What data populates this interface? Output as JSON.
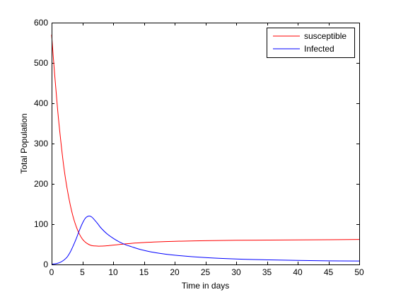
{
  "chart_data": {
    "type": "line",
    "xlabel": "Time in days",
    "ylabel": "Total Population",
    "xlim": [
      0,
      50
    ],
    "ylim": [
      0,
      600
    ],
    "x_ticks": [
      0,
      5,
      10,
      15,
      20,
      25,
      30,
      35,
      40,
      45,
      50
    ],
    "y_ticks": [
      0,
      100,
      200,
      300,
      400,
      500,
      600
    ],
    "grid": false,
    "legend_position": "top-right",
    "series": [
      {
        "name": "susceptible",
        "color": "#ff0000",
        "points": [
          [
            0,
            570
          ],
          [
            0.5,
            470
          ],
          [
            1,
            380
          ],
          [
            1.5,
            305
          ],
          [
            2,
            240
          ],
          [
            2.5,
            190
          ],
          [
            3,
            150
          ],
          [
            3.5,
            118
          ],
          [
            4,
            94
          ],
          [
            4.5,
            76
          ],
          [
            5,
            63
          ],
          [
            5.5,
            55
          ],
          [
            6,
            50
          ],
          [
            6.5,
            47
          ],
          [
            7,
            46
          ],
          [
            7.5,
            45.5
          ],
          [
            8,
            45.5
          ],
          [
            9,
            46.5
          ],
          [
            10,
            48
          ],
          [
            11,
            49.5
          ],
          [
            12,
            51
          ],
          [
            13,
            52.5
          ],
          [
            14,
            53.5
          ],
          [
            15,
            54.5
          ],
          [
            17,
            56
          ],
          [
            20,
            57.5
          ],
          [
            25,
            59
          ],
          [
            30,
            60
          ],
          [
            35,
            60.5
          ],
          [
            40,
            61
          ],
          [
            45,
            61.5
          ],
          [
            50,
            62
          ]
        ]
      },
      {
        "name": "Infected",
        "color": "#0000ff",
        "points": [
          [
            0,
            1
          ],
          [
            0.5,
            1.5
          ],
          [
            1,
            3
          ],
          [
            1.5,
            6
          ],
          [
            2,
            11
          ],
          [
            2.5,
            18
          ],
          [
            3,
            30
          ],
          [
            3.5,
            46
          ],
          [
            4,
            64
          ],
          [
            4.5,
            84
          ],
          [
            5,
            102
          ],
          [
            5.5,
            115
          ],
          [
            6,
            120
          ],
          [
            6.5,
            118
          ],
          [
            7,
            110
          ],
          [
            7.5,
            101
          ],
          [
            8,
            91
          ],
          [
            9,
            76
          ],
          [
            10,
            65
          ],
          [
            11,
            56
          ],
          [
            12,
            49
          ],
          [
            13,
            44
          ],
          [
            14,
            39
          ],
          [
            15,
            35
          ],
          [
            17,
            29
          ],
          [
            20,
            23
          ],
          [
            25,
            17
          ],
          [
            30,
            13.5
          ],
          [
            35,
            11.5
          ],
          [
            40,
            10
          ],
          [
            45,
            9
          ],
          [
            50,
            8.5
          ]
        ]
      }
    ]
  }
}
